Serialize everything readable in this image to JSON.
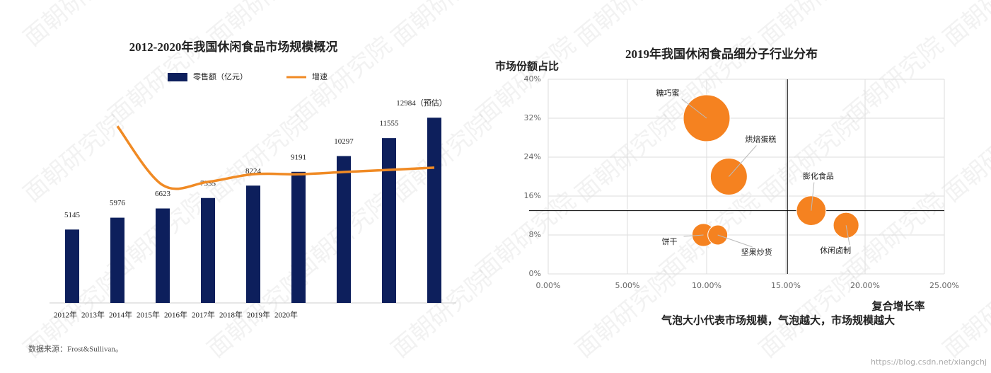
{
  "watermark": "面朝研究院",
  "url_watermark": "https://blog.csdn.net/xiangchj",
  "chart_data": [
    {
      "type": "combo",
      "title": "2012-2020年我国休闲食品市场规模概况",
      "categories": [
        "2012年",
        "2013年",
        "2014年",
        "2015年",
        "2016年",
        "2017年",
        "2018年",
        "2019年",
        "2020年"
      ],
      "series": [
        {
          "name": "零售额（亿元）",
          "kind": "bar",
          "color": "#0d1f5c",
          "values": [
            5145,
            5976,
            6623,
            7355,
            8224,
            9191,
            10297,
            11555,
            12984
          ],
          "value_labels": [
            "5145",
            "5976",
            "6623",
            "7355",
            "8224",
            "9191",
            "10297",
            "11555",
            "12984（预估）"
          ]
        },
        {
          "name": "增速",
          "kind": "line",
          "color": "#f08a24",
          "axis": "y2",
          "values": [
            null,
            16.2,
            10.8,
            11.1,
            11.8,
            11.8,
            12.0,
            12.2,
            12.4
          ]
        }
      ],
      "ylim": [
        0,
        13000
      ],
      "y2lim": [
        0,
        17
      ],
      "source": "数据来源：Frost&Sullivan。"
    },
    {
      "type": "bubble",
      "title": "2019年我国休闲食品细分子行业分布",
      "x_label": "复合增长率",
      "y_label": "市场份额占比",
      "note": "气泡大小代表市场规模，气泡越大，市场规模越大",
      "labels": [
        "糖巧蜜",
        "烘焙蛋糕",
        "膨化食品",
        "休闲卤制",
        "饼干",
        "坚果炒货"
      ],
      "x": [
        10,
        11.4,
        16.6,
        18.8,
        9.8,
        10.7
      ],
      "values": [
        32,
        20,
        13,
        10,
        8,
        8
      ],
      "sizes": [
        100,
        62,
        40,
        30,
        24,
        18
      ],
      "color": "#f58220",
      "xlim": [
        0,
        25
      ],
      "ylim": [
        0,
        40
      ],
      "xticks": [
        {
          "value": 0,
          "label": "0.00%"
        },
        {
          "value": 5,
          "label": "5.00%"
        },
        {
          "value": 10,
          "label": "10.00%"
        },
        {
          "value": 15,
          "label": "15.00%"
        },
        {
          "value": 20,
          "label": "20.00%"
        },
        {
          "value": 25,
          "label": "25.00%"
        }
      ],
      "yticks": [
        {
          "value": 0,
          "label": "0%"
        },
        {
          "value": 8,
          "label": "8%"
        },
        {
          "value": 16,
          "label": "16%"
        },
        {
          "value": 24,
          "label": "24%"
        },
        {
          "value": 32,
          "label": "32%"
        },
        {
          "value": 40,
          "label": "40%"
        }
      ],
      "reference_lines": {
        "x": 15.1,
        "y": 13
      },
      "grid": true
    }
  ]
}
